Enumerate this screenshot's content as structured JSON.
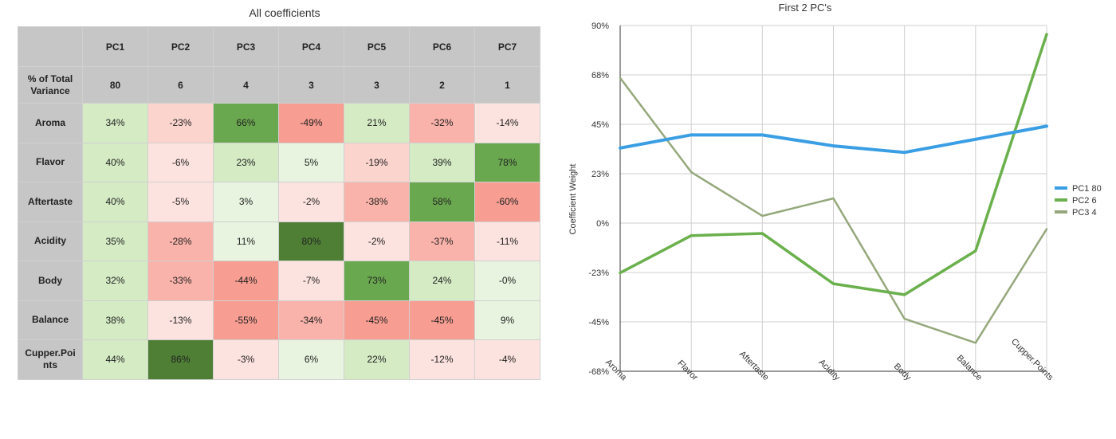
{
  "table": {
    "title": "All coefficients",
    "pc_headers": [
      "PC1",
      "PC2",
      "PC3",
      "PC4",
      "PC5",
      "PC6",
      "PC7"
    ],
    "variance_label": "% of Total Variance",
    "variance_values": [
      "80",
      "6",
      "4",
      "3",
      "3",
      "2",
      "1"
    ],
    "rows": [
      {
        "label": "Aroma",
        "values": [
          34,
          -23,
          66,
          -49,
          21,
          -32,
          -14
        ],
        "text": [
          "34%",
          "-23%",
          "66%",
          "-49%",
          "21%",
          "-32%",
          "-14%"
        ]
      },
      {
        "label": "Flavor",
        "values": [
          40,
          -6,
          23,
          5,
          -19,
          39,
          78
        ],
        "text": [
          "40%",
          "-6%",
          "23%",
          "5%",
          "-19%",
          "39%",
          "78%"
        ]
      },
      {
        "label": "Aftertaste",
        "values": [
          40,
          -5,
          3,
          -2,
          -38,
          58,
          -60
        ],
        "text": [
          "40%",
          "-5%",
          "3%",
          "-2%",
          "-38%",
          "58%",
          "-60%"
        ]
      },
      {
        "label": "Acidity",
        "values": [
          35,
          -28,
          11,
          80,
          -2,
          -37,
          -11
        ],
        "text": [
          "35%",
          "-28%",
          "11%",
          "80%",
          "-2%",
          "-37%",
          "-11%"
        ]
      },
      {
        "label": "Body",
        "values": [
          32,
          -33,
          -44,
          -7,
          73,
          24,
          0
        ],
        "text": [
          "32%",
          "-33%",
          "-44%",
          "-7%",
          "73%",
          "24%",
          "-0%"
        ]
      },
      {
        "label": "Balance",
        "values": [
          38,
          -13,
          -55,
          -34,
          -45,
          -45,
          9
        ],
        "text": [
          "38%",
          "-13%",
          "-55%",
          "-34%",
          "-45%",
          "-45%",
          "9%"
        ]
      },
      {
        "label": "Cupper.Points",
        "values": [
          44,
          86,
          -3,
          6,
          22,
          -12,
          -4
        ],
        "text": [
          "44%",
          "86%",
          "-3%",
          "6%",
          "22%",
          "-12%",
          "-4%"
        ]
      }
    ],
    "colors": {
      "green_light": "#d6ecc6",
      "green_mid": "#9fd27e",
      "green_dark": "#5d9b3c",
      "green_darkest": "#3d6e26",
      "red_light": "#fad9d4",
      "red_mid": "#f8b4ab",
      "red_dark": "#f4988c"
    }
  },
  "chart_data": {
    "type": "line",
    "title": "First 2 PC's",
    "xlabel": "",
    "ylabel": "Coefficient Weight",
    "categories": [
      "Aroma",
      "Flavor",
      "Aftertaste",
      "Acidity",
      "Body",
      "Balance",
      "Cupper.Points"
    ],
    "y_ticks": [
      "90%",
      "68%",
      "45%",
      "23%",
      "0%",
      "-23%",
      "-45%",
      "-68%"
    ],
    "ylim": [
      -68,
      90
    ],
    "grid": true,
    "legend_position": "right",
    "series": [
      {
        "name": "PC1 80",
        "color": "#3a9ee4",
        "values": [
          34,
          40,
          40,
          35,
          32,
          38,
          44
        ]
      },
      {
        "name": "PC2 6",
        "color": "#6ab04c",
        "values": [
          -23,
          -6,
          -5,
          -28,
          -33,
          -13,
          86
        ]
      },
      {
        "name": "PC3 4",
        "color": "#95a87c",
        "values": [
          66,
          23,
          3,
          11,
          -44,
          -55,
          -3
        ]
      }
    ]
  }
}
